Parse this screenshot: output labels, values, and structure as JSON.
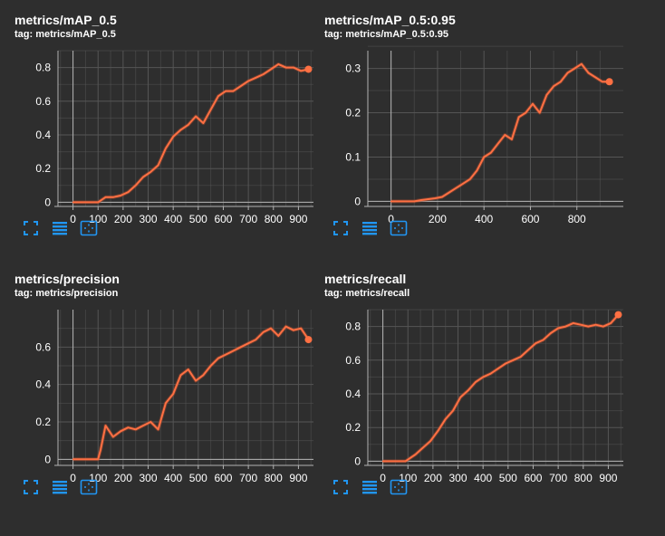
{
  "colors": {
    "background": "#2e2e2e",
    "grid": "#555555",
    "axis": "#b3b3b3",
    "series": "#ff7043",
    "series_faint": "#a24a30",
    "icon": "#2196f3"
  },
  "icons": [
    "fullscreen-icon",
    "toggle-log-scale-icon",
    "fit-domain-icon"
  ],
  "chart_data": [
    {
      "type": "line",
      "title": "metrics/mAP_0.5",
      "tag": "tag: metrics/mAP_0.5",
      "xlabel": "",
      "ylabel": "",
      "xlim": [
        -60,
        960
      ],
      "ylim": [
        -0.1,
        0.9
      ],
      "xticks": [
        0,
        100,
        200,
        300,
        400,
        500,
        600,
        700,
        800,
        900
      ],
      "yticks": [
        0,
        0.2,
        0.4,
        0.6,
        0.8
      ],
      "ytick_labels": [
        "0",
        "0.2",
        "0.4",
        "0.6",
        "0.8"
      ],
      "grid": true,
      "series": [
        {
          "x": [
            0,
            100,
            130,
            160,
            190,
            220,
            250,
            280,
            310,
            340,
            370,
            400,
            430,
            460,
            490,
            520,
            550,
            580,
            610,
            640,
            670,
            700,
            730,
            760,
            790,
            820,
            850,
            880,
            910,
            940
          ],
          "values": [
            0,
            0,
            0.03,
            0.03,
            0.04,
            0.06,
            0.1,
            0.15,
            0.18,
            0.22,
            0.32,
            0.39,
            0.43,
            0.46,
            0.51,
            0.47,
            0.55,
            0.63,
            0.66,
            0.66,
            0.69,
            0.72,
            0.74,
            0.76,
            0.79,
            0.82,
            0.8,
            0.8,
            0.78,
            0.79
          ]
        }
      ],
      "last_point": {
        "x": 940,
        "y": 0.79
      }
    },
    {
      "type": "line",
      "title": "metrics/mAP_0.5:0.95",
      "tag": "tag: metrics/mAP_0.5:0.95",
      "xlabel": "",
      "ylabel": "",
      "xlim": [
        -100,
        1000
      ],
      "ylim": [
        -0.04,
        0.34
      ],
      "xticks": [
        0,
        200,
        400,
        600,
        800
      ],
      "yticks": [
        0,
        0.1,
        0.2,
        0.3
      ],
      "ytick_labels": [
        "0",
        "0.1",
        "0.2",
        "0.3"
      ],
      "grid": true,
      "series": [
        {
          "x": [
            0,
            100,
            130,
            160,
            190,
            220,
            250,
            280,
            310,
            340,
            370,
            400,
            430,
            460,
            490,
            520,
            550,
            580,
            610,
            640,
            670,
            700,
            730,
            760,
            790,
            820,
            850,
            880,
            910,
            940
          ],
          "values": [
            0,
            0,
            0.003,
            0.005,
            0.007,
            0.01,
            0.02,
            0.03,
            0.04,
            0.05,
            0.07,
            0.1,
            0.11,
            0.13,
            0.15,
            0.14,
            0.19,
            0.2,
            0.22,
            0.2,
            0.24,
            0.26,
            0.27,
            0.29,
            0.3,
            0.31,
            0.29,
            0.28,
            0.27,
            0.27
          ]
        }
      ],
      "last_point": {
        "x": 940,
        "y": 0.27
      }
    },
    {
      "type": "line",
      "title": "metrics/precision",
      "tag": "tag: metrics/precision",
      "xlabel": "",
      "ylabel": "",
      "xlim": [
        -60,
        960
      ],
      "ylim": [
        -0.1,
        0.8
      ],
      "xticks": [
        0,
        100,
        200,
        300,
        400,
        500,
        600,
        700,
        800,
        900
      ],
      "yticks": [
        0,
        0.2,
        0.4,
        0.6
      ],
      "ytick_labels": [
        "0",
        "0.2",
        "0.4",
        "0.6"
      ],
      "grid": true,
      "series": [
        {
          "x": [
            0,
            100,
            110,
            130,
            160,
            190,
            220,
            250,
            280,
            310,
            340,
            370,
            400,
            430,
            460,
            490,
            520,
            550,
            580,
            610,
            640,
            670,
            700,
            730,
            760,
            790,
            820,
            850,
            880,
            910,
            940
          ],
          "values": [
            0,
            0,
            0.05,
            0.18,
            0.12,
            0.15,
            0.17,
            0.16,
            0.18,
            0.2,
            0.16,
            0.3,
            0.35,
            0.45,
            0.48,
            0.42,
            0.45,
            0.5,
            0.54,
            0.56,
            0.58,
            0.6,
            0.62,
            0.64,
            0.68,
            0.7,
            0.66,
            0.71,
            0.69,
            0.7,
            0.64
          ]
        }
      ],
      "last_point": {
        "x": 940,
        "y": 0.64
      }
    },
    {
      "type": "line",
      "title": "metrics/recall",
      "tag": "tag: metrics/recall",
      "xlabel": "",
      "ylabel": "",
      "xlim": [
        -60,
        960
      ],
      "ylim": [
        -0.1,
        0.9
      ],
      "xticks": [
        0,
        100,
        200,
        300,
        400,
        500,
        600,
        700,
        800,
        900
      ],
      "yticks": [
        0,
        0.2,
        0.4,
        0.6,
        0.8
      ],
      "ytick_labels": [
        "0",
        "0.2",
        "0.4",
        "0.6",
        "0.8"
      ],
      "grid": true,
      "series": [
        {
          "x": [
            0,
            90,
            130,
            160,
            190,
            220,
            250,
            280,
            310,
            340,
            370,
            400,
            430,
            460,
            490,
            520,
            550,
            580,
            610,
            640,
            670,
            700,
            730,
            760,
            790,
            820,
            850,
            880,
            910,
            940
          ],
          "values": [
            0,
            0,
            0.04,
            0.08,
            0.12,
            0.18,
            0.25,
            0.3,
            0.38,
            0.42,
            0.47,
            0.5,
            0.52,
            0.55,
            0.58,
            0.6,
            0.62,
            0.66,
            0.7,
            0.72,
            0.76,
            0.79,
            0.8,
            0.82,
            0.81,
            0.8,
            0.81,
            0.8,
            0.82,
            0.87
          ]
        }
      ],
      "last_point": {
        "x": 940,
        "y": 0.87
      }
    }
  ]
}
